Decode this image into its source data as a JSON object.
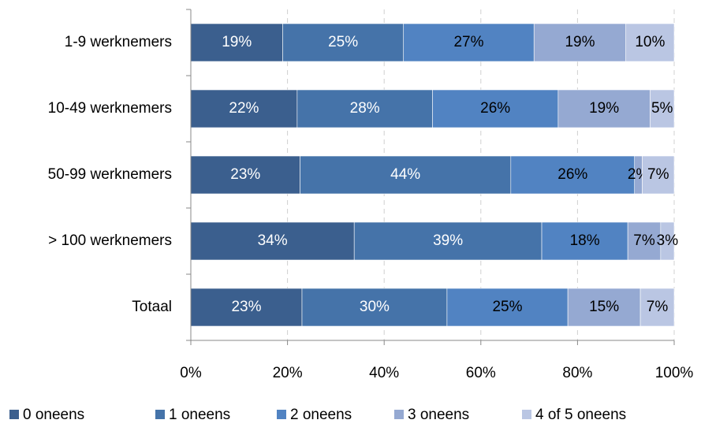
{
  "chart_data": {
    "type": "bar",
    "orientation": "horizontal",
    "stacked": true,
    "categories": [
      "1-9 werknemers",
      "10-49 werknemers",
      "50-99 werknemers",
      "> 100 werknemers",
      "Totaal"
    ],
    "series": [
      {
        "name": "0 oneens",
        "color": "#3b5f8e",
        "values": [
          19,
          22,
          22.6,
          33.8,
          23
        ],
        "value_labels": [
          "19%",
          "22%",
          "23%",
          "34%",
          "23%"
        ]
      },
      {
        "name": "1 oneens",
        "color": "#4573a9",
        "values": [
          25,
          28,
          43.6,
          38.8,
          30
        ],
        "value_labels": [
          "25%",
          "28%",
          "44%",
          "39%",
          "30%"
        ]
      },
      {
        "name": "2 oneens",
        "color": "#5183c2",
        "values": [
          27,
          26,
          25.6,
          17.8,
          25
        ],
        "value_labels": [
          "27%",
          "26%",
          "26%",
          "18%",
          "25%"
        ]
      },
      {
        "name": "3 oneens",
        "color": "#95a9d2",
        "values": [
          19,
          19,
          1.6,
          6.8,
          15
        ],
        "value_labels": [
          "19%",
          "19%",
          "2%",
          "7%",
          "15%"
        ]
      },
      {
        "name": "4 of 5 oneens",
        "color": "#bac6e3",
        "values": [
          10,
          5,
          6.6,
          2.8,
          7
        ],
        "value_labels": [
          "10%",
          "5%",
          "7%",
          "3%",
          "7%"
        ]
      }
    ],
    "xlim": [
      0,
      100
    ],
    "xticks": [
      {
        "value": 0,
        "label": "0%"
      },
      {
        "value": 20,
        "label": "20%"
      },
      {
        "value": 40,
        "label": "40%"
      },
      {
        "value": 60,
        "label": "60%"
      },
      {
        "value": 80,
        "label": "80%"
      },
      {
        "value": 100,
        "label": "100%"
      }
    ],
    "grid": true,
    "legend": "bottom"
  }
}
